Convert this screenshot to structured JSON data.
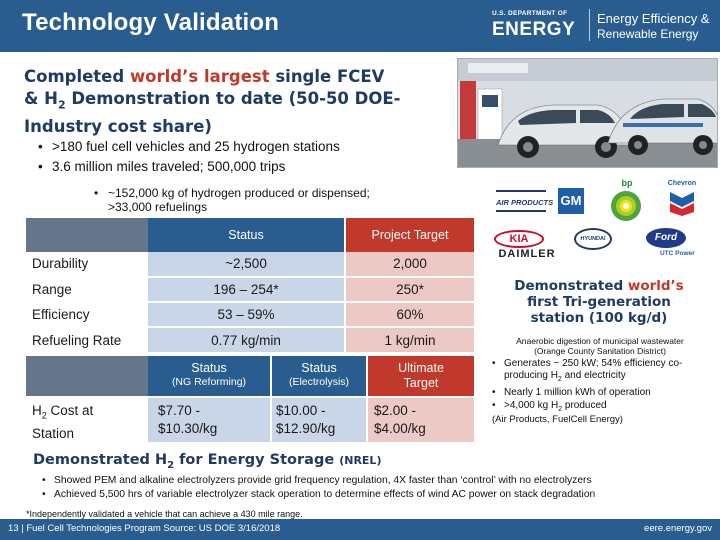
{
  "header": {
    "title": "Technology Validation",
    "doe_small": "U.S. DEPARTMENT OF",
    "doe_big": "ENERGY",
    "eere_line1": "Energy Efficiency &",
    "eere_line2": "Renewable Energy"
  },
  "headline": {
    "part1": "Completed ",
    "highlight": "world’s largest",
    "part2": " single FCEV",
    "part3": "& H",
    "sub": "2",
    "part4": " Demonstration to date (50-50 DOE-Industry cost share)"
  },
  "bullets_main": [
    ">180 fuel cell vehicles and 25 hydrogen stations",
    "3.6 million miles traveled; 500,000 trips"
  ],
  "bullet_sub": {
    "line1": "~152,000 kg of hydrogen produced or dispensed;",
    "line2": ">33,000 refuelings"
  },
  "bullet_glyph": "•",
  "partner_logos": [
    "AIR PRODUCTS",
    "GM",
    "bp",
    "Chevron",
    "KIA",
    "HYUNDAI",
    "Ford",
    "DAIMLER",
    "UTC Power"
  ],
  "table": {
    "col_status": "Status",
    "col_target": "Project Target",
    "rows": [
      {
        "label": "Durability",
        "status": "~2,500",
        "target": "2,000"
      },
      {
        "label": "Range",
        "status": "196 – 254*",
        "target": "250*"
      },
      {
        "label": "Efficiency",
        "status": "53 – 59%",
        "target": "60%"
      },
      {
        "label": "Refueling Rate",
        "status": "0.77 kg/min",
        "target": "1 kg/min"
      }
    ],
    "cost_headers": {
      "ng_title": "Status",
      "ng_sub": "(NG Reforming)",
      "el_title": "Status",
      "el_sub": "(Electrolysis)",
      "ut_title": "Ultimate",
      "ut_sub": "Target"
    },
    "cost_label": {
      "line1": "H",
      "sub": "2",
      "line1b": " Cost at",
      "line2": "Station"
    },
    "cost_values": {
      "ng_1": "$7.70 -",
      "ng_2": "$10.30/kg",
      "el_1": "$10.00 -",
      "el_2": "$12.90/kg",
      "ut_1": "$2.00 -",
      "ut_2": "$4.00/kg"
    }
  },
  "tri_gen": {
    "pre": "Demonstrated ",
    "highlight": "world’s",
    "line2": "first Tri-generation",
    "line3": "station (100 kg/d)",
    "sub1": "Anaerobic digestion of municipal wastewater",
    "sub2": "(Orange County Sanitation District)",
    "bullets": [
      "Generates ~ 250 kW; 54% efficiency co-producing H",
      "Nearly 1 million kWh of operation",
      ">4,000 kg H"
    ],
    "bullet1_tail_sub": "2",
    "bullet1_tail": " and electricity",
    "bullet3_sub": "2",
    "bullet3_tail": " produced",
    "footer": "(Air Products, FuelCell Energy)"
  },
  "energy_storage": {
    "title_pre": "Demonstrated H",
    "title_sub": "2",
    "title_post": " for Energy Storage ",
    "nrel": "(NREL)",
    "bullets": [
      "Showed PEM and alkaline electrolyzers provide grid frequency regulation, 4X faster than ‘control’ with no electrolyzers",
      "Achieved 5,500 hrs of variable electrolyzer stack operation to determine effects of wind AC power on stack degradation"
    ]
  },
  "footnote": "*Independently validated a vehicle that can achieve a 430 mile range.",
  "footer": {
    "left": "13 | Fuel Cell Technologies Program Source: US DOE 3/16/2018",
    "right": "eere.energy.gov"
  },
  "colors": {
    "brand_blue": "#2a5d8f",
    "accent_red": "#c0392b",
    "navy_text": "#1f3a63"
  }
}
